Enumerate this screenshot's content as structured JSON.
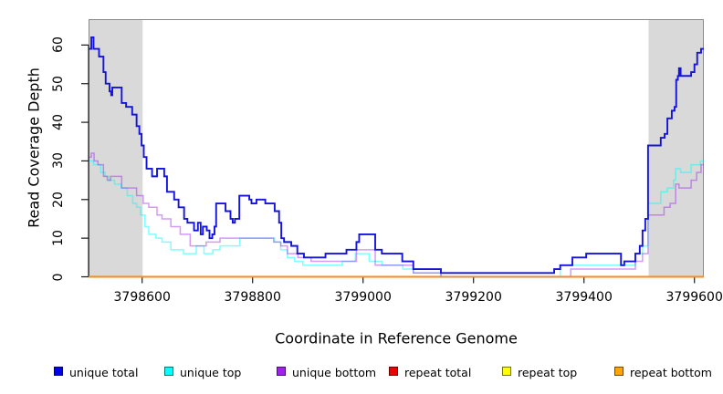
{
  "chart_data": {
    "type": "line",
    "style": "step",
    "title": "",
    "xlabel": "Coordinate in Reference Genome",
    "ylabel": "Read Coverage Depth",
    "xlim": [
      3798503,
      3799617
    ],
    "ylim": [
      0,
      66.7
    ],
    "x_ticks": [
      3798600,
      3798800,
      3799000,
      3799200,
      3799400,
      3799600
    ],
    "y_ticks": [
      0,
      10,
      20,
      30,
      40,
      50,
      60
    ],
    "grid": false,
    "legend_position": "bottom",
    "colors": {
      "background": "#FFFFFF",
      "plot_border": "#8A8A8A",
      "axis": "#1A1A1A",
      "highlight_region": "#D9D9D9"
    },
    "highlight_regions": [
      {
        "from": 3798503,
        "to": 3798601
      },
      {
        "from": 3799517,
        "to": 3799617
      }
    ],
    "series": [
      {
        "name": "unique total",
        "color": "#0000EE",
        "line_color": "#1414DC",
        "opacity": 1,
        "points": [
          [
            3798504,
            59
          ],
          [
            3798508,
            62
          ],
          [
            3798512,
            59
          ],
          [
            3798522,
            57
          ],
          [
            3798530,
            53
          ],
          [
            3798534,
            50
          ],
          [
            3798541,
            48
          ],
          [
            3798544,
            47
          ],
          [
            3798546,
            49
          ],
          [
            3798563,
            45
          ],
          [
            3798571,
            44
          ],
          [
            3798582,
            42
          ],
          [
            3798590,
            39
          ],
          [
            3798595,
            37
          ],
          [
            3798599,
            34
          ],
          [
            3798603,
            31
          ],
          [
            3798608,
            28
          ],
          [
            3798618,
            26
          ],
          [
            3798627,
            28
          ],
          [
            3798640,
            26
          ],
          [
            3798645,
            22
          ],
          [
            3798658,
            20
          ],
          [
            3798666,
            18
          ],
          [
            3798676,
            15
          ],
          [
            3798682,
            14
          ],
          [
            3798694,
            12
          ],
          [
            3798701,
            14
          ],
          [
            3798706,
            11
          ],
          [
            3798710,
            13
          ],
          [
            3798717,
            12
          ],
          [
            3798722,
            10
          ],
          [
            3798727,
            11
          ],
          [
            3798731,
            13
          ],
          [
            3798734,
            19
          ],
          [
            3798751,
            17
          ],
          [
            3798760,
            15
          ],
          [
            3798764,
            14
          ],
          [
            3798768,
            15
          ],
          [
            3798776,
            21
          ],
          [
            3798794,
            20
          ],
          [
            3798798,
            19
          ],
          [
            3798807,
            20
          ],
          [
            3798823,
            19
          ],
          [
            3798840,
            17
          ],
          [
            3798848,
            14
          ],
          [
            3798852,
            10
          ],
          [
            3798857,
            9
          ],
          [
            3798870,
            8
          ],
          [
            3798881,
            6
          ],
          [
            3798893,
            5
          ],
          [
            3798932,
            6
          ],
          [
            3798970,
            7
          ],
          [
            3798988,
            9
          ],
          [
            3798993,
            11
          ],
          [
            3799022,
            7
          ],
          [
            3799034,
            6
          ],
          [
            3799071,
            4
          ],
          [
            3799091,
            2
          ],
          [
            3799141,
            1
          ],
          [
            3799346,
            2
          ],
          [
            3799357,
            3
          ],
          [
            3799379,
            5
          ],
          [
            3799404,
            6
          ],
          [
            3799467,
            3
          ],
          [
            3799473,
            4
          ],
          [
            3799493,
            6
          ],
          [
            3799501,
            8
          ],
          [
            3799506,
            12
          ],
          [
            3799511,
            15
          ],
          [
            3799516,
            34
          ],
          [
            3799539,
            36
          ],
          [
            3799546,
            37
          ],
          [
            3799551,
            41
          ],
          [
            3799559,
            43
          ],
          [
            3799564,
            44
          ],
          [
            3799567,
            51
          ],
          [
            3799570,
            52
          ],
          [
            3799572,
            54
          ],
          [
            3799575,
            52
          ],
          [
            3799594,
            53
          ],
          [
            3799600,
            55
          ],
          [
            3799605,
            58
          ],
          [
            3799612,
            59
          ]
        ]
      },
      {
        "name": "unique top",
        "color": "#00FFFF",
        "line_color": "#00FFFF",
        "opacity": 0.5,
        "points": [
          [
            3798504,
            30
          ],
          [
            3798512,
            29
          ],
          [
            3798525,
            27
          ],
          [
            3798533,
            26
          ],
          [
            3798540,
            25
          ],
          [
            3798550,
            24
          ],
          [
            3798562,
            23
          ],
          [
            3798573,
            21
          ],
          [
            3798583,
            19
          ],
          [
            3798590,
            18
          ],
          [
            3798597,
            16
          ],
          [
            3798605,
            13
          ],
          [
            3798612,
            11
          ],
          [
            3798625,
            10
          ],
          [
            3798636,
            9
          ],
          [
            3798652,
            7
          ],
          [
            3798675,
            6
          ],
          [
            3798698,
            8
          ],
          [
            3798712,
            6
          ],
          [
            3798728,
            7
          ],
          [
            3798741,
            8
          ],
          [
            3798777,
            10
          ],
          [
            3798840,
            9
          ],
          [
            3798851,
            7
          ],
          [
            3798863,
            5
          ],
          [
            3798876,
            4
          ],
          [
            3798891,
            3
          ],
          [
            3798962,
            4
          ],
          [
            3798986,
            6
          ],
          [
            3799011,
            4
          ],
          [
            3799034,
            3
          ],
          [
            3799072,
            2
          ],
          [
            3799091,
            1
          ],
          [
            3799141,
            0
          ],
          [
            3799357,
            3
          ],
          [
            3799493,
            6
          ],
          [
            3799506,
            8
          ],
          [
            3799516,
            19
          ],
          [
            3799539,
            22
          ],
          [
            3799551,
            23
          ],
          [
            3799562,
            25
          ],
          [
            3799566,
            28
          ],
          [
            3799575,
            27
          ],
          [
            3799594,
            29
          ],
          [
            3799611,
            30
          ]
        ]
      },
      {
        "name": "unique bottom",
        "color": "#A020F0",
        "line_color": "#A020F0",
        "opacity": 0.45,
        "points": [
          [
            3798504,
            31
          ],
          [
            3798508,
            32
          ],
          [
            3798513,
            30
          ],
          [
            3798520,
            29
          ],
          [
            3798530,
            26
          ],
          [
            3798537,
            25
          ],
          [
            3798543,
            26
          ],
          [
            3798563,
            23
          ],
          [
            3798590,
            21
          ],
          [
            3798602,
            19
          ],
          [
            3798612,
            18
          ],
          [
            3798627,
            16
          ],
          [
            3798636,
            15
          ],
          [
            3798652,
            13
          ],
          [
            3798669,
            11
          ],
          [
            3798687,
            8
          ],
          [
            3798716,
            9
          ],
          [
            3798741,
            10
          ],
          [
            3798838,
            9
          ],
          [
            3798851,
            8
          ],
          [
            3798863,
            6
          ],
          [
            3798882,
            5
          ],
          [
            3798906,
            4
          ],
          [
            3798988,
            7
          ],
          [
            3799022,
            3
          ],
          [
            3799091,
            1
          ],
          [
            3799141,
            0
          ],
          [
            3799376,
            2
          ],
          [
            3799493,
            4
          ],
          [
            3799506,
            6
          ],
          [
            3799516,
            16
          ],
          [
            3799545,
            18
          ],
          [
            3799556,
            19
          ],
          [
            3799566,
            24
          ],
          [
            3799572,
            23
          ],
          [
            3799594,
            25
          ],
          [
            3799604,
            27
          ],
          [
            3799612,
            29
          ]
        ]
      },
      {
        "name": "repeat total",
        "color": "#EE0000",
        "line_color": "#EE0000",
        "opacity": 1,
        "points": [
          [
            3798503,
            0
          ]
        ]
      },
      {
        "name": "repeat top",
        "color": "#FFFF00",
        "line_color": "#FFFF00",
        "opacity": 1,
        "points": [
          [
            3798503,
            0
          ]
        ]
      },
      {
        "name": "repeat bottom",
        "color": "#FFA500",
        "line_color": "#FF9100",
        "opacity": 1,
        "points": [
          [
            3798503,
            0
          ]
        ]
      }
    ]
  }
}
